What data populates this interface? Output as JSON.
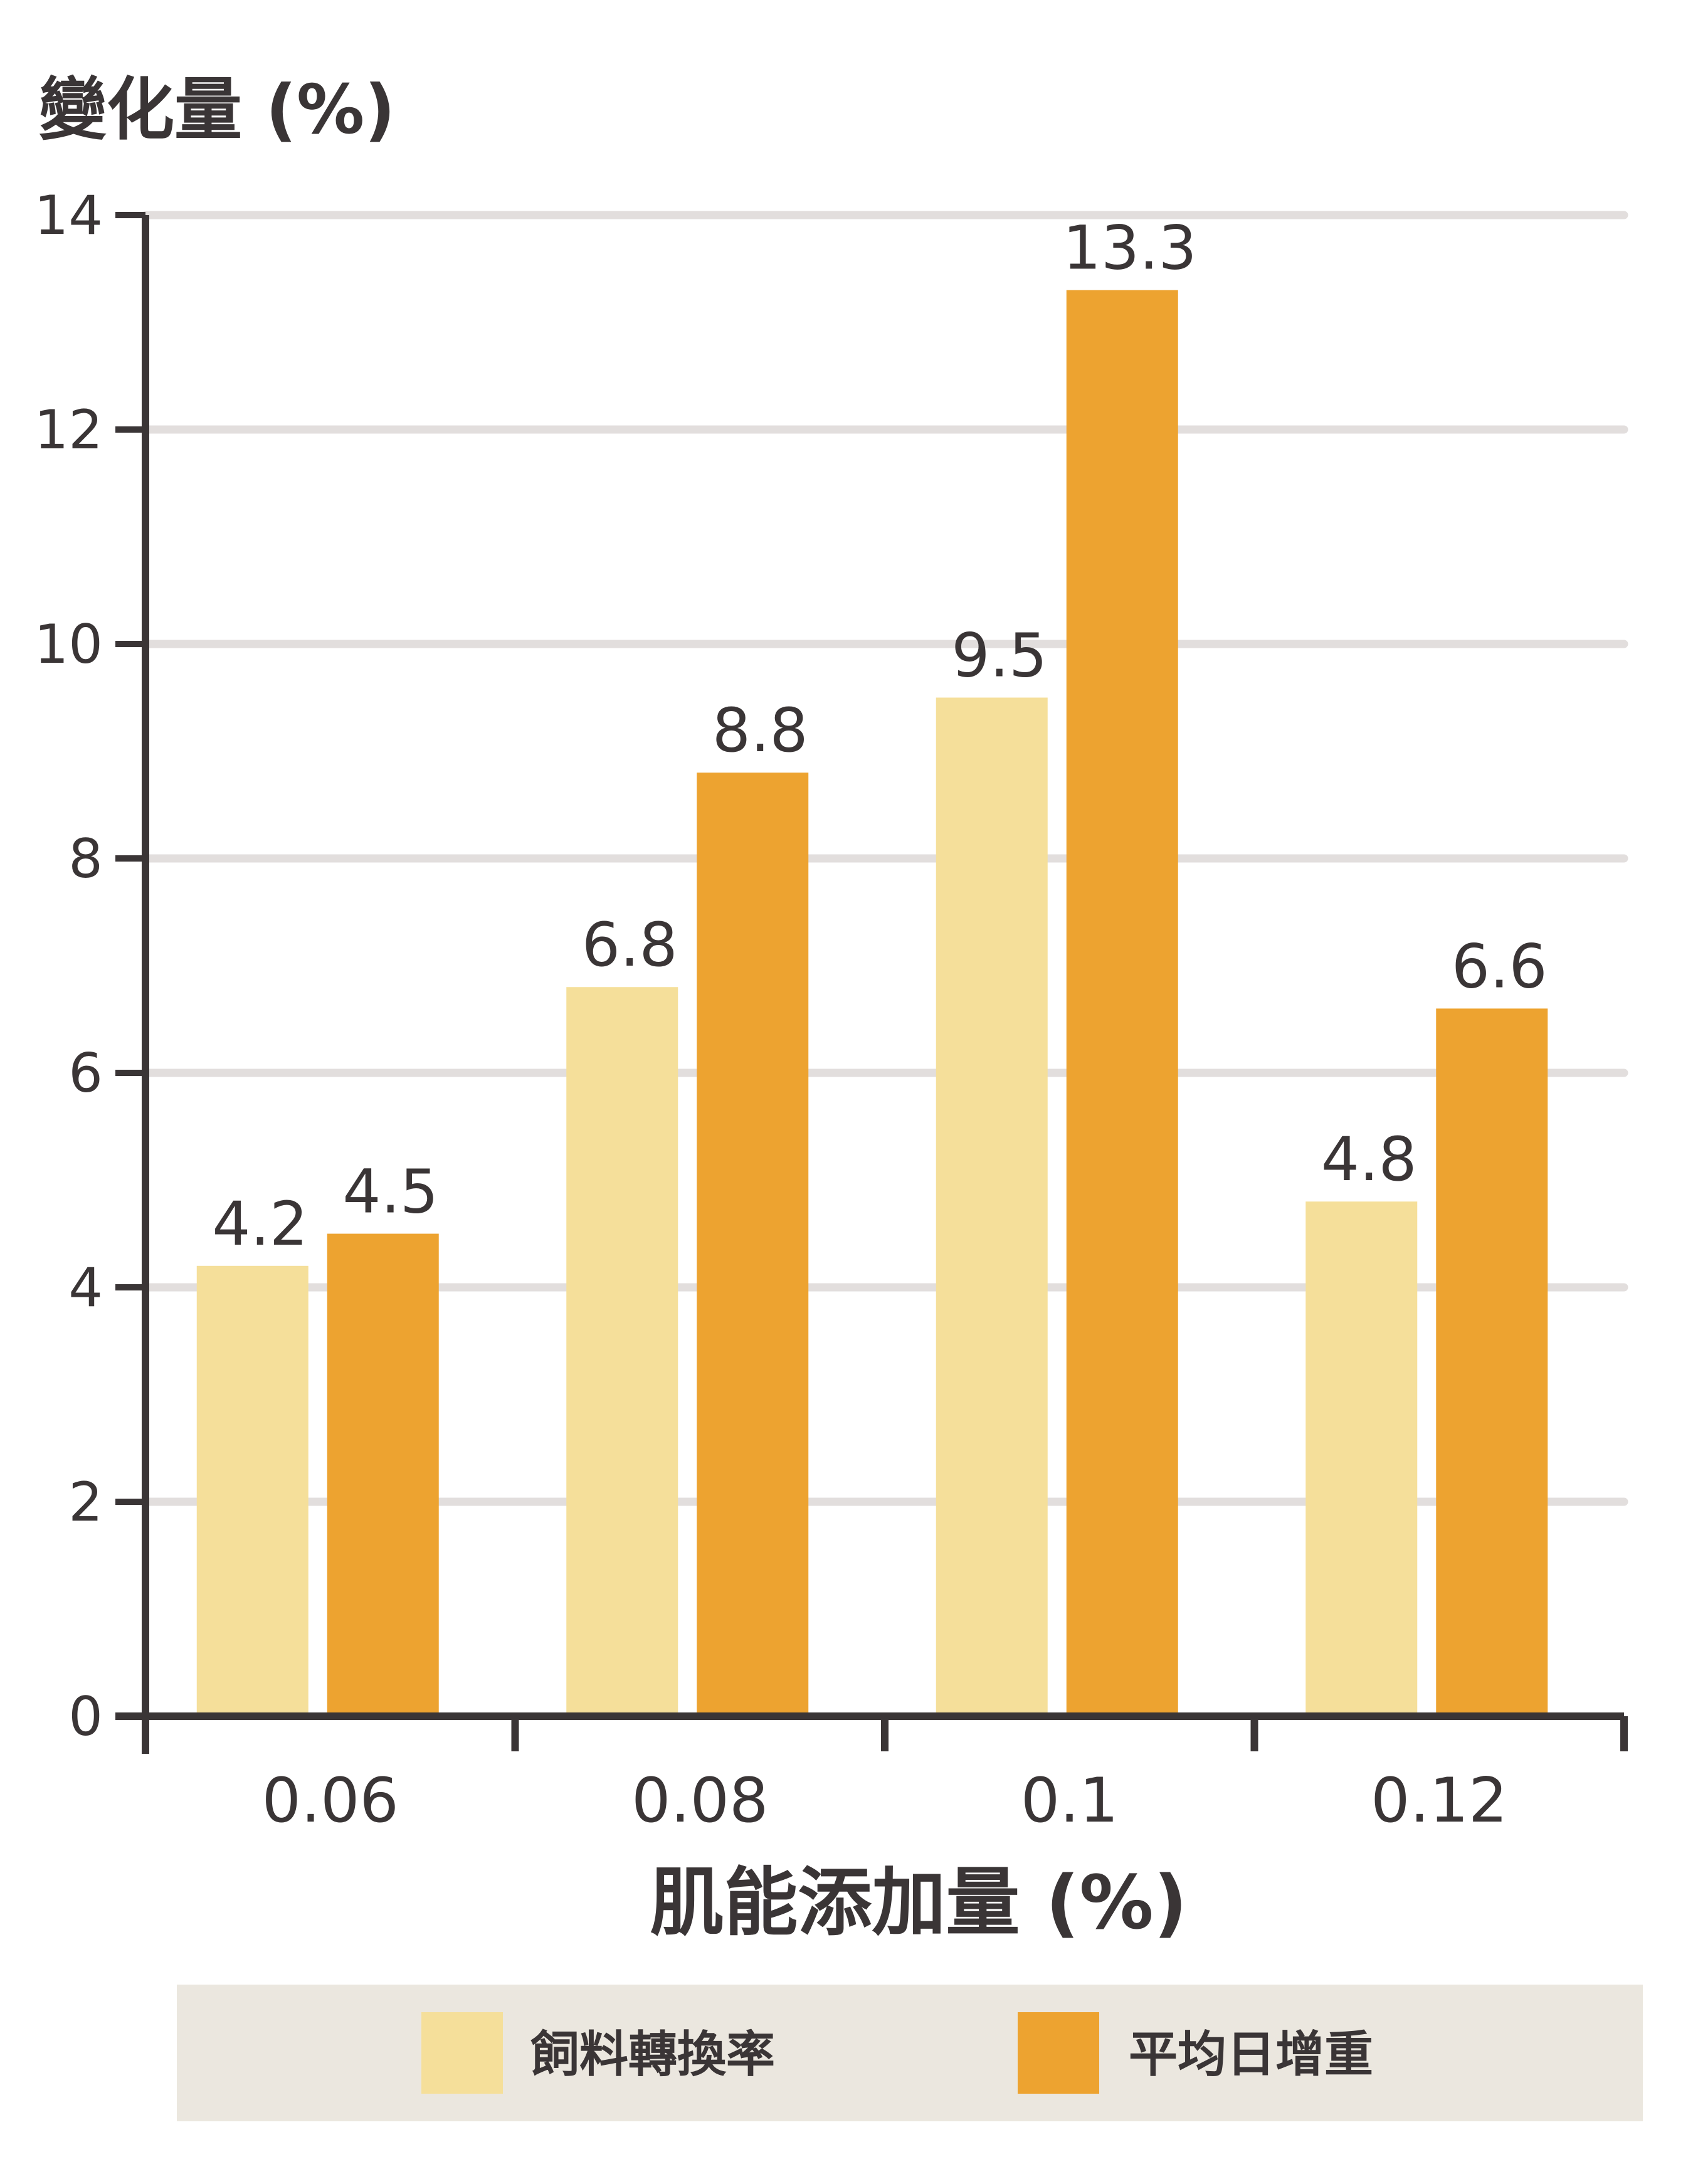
{
  "chart_data": {
    "type": "bar",
    "title": "",
    "ylabel": "變化量 (%)",
    "xlabel": "肌能添加量 (%)",
    "categories": [
      "0.06",
      "0.08",
      "0.1",
      "0.12"
    ],
    "series": [
      {
        "name": "飼料轉換率",
        "values": [
          4.2,
          6.8,
          9.5,
          4.8
        ],
        "color": "#f5df9a"
      },
      {
        "name": "平均日增重",
        "values": [
          4.5,
          8.8,
          13.3,
          6.6
        ],
        "color": "#eda330"
      }
    ],
    "ylim": [
      0,
      14
    ],
    "yticks": [
      0,
      2,
      4,
      6,
      8,
      10,
      12,
      14
    ],
    "grid": true,
    "legend_position": "bottom",
    "colors": {
      "axis": "#3a3536",
      "grid": "#e2dedd",
      "legend_bg": "#ebe7df",
      "text": "#3a3536"
    }
  }
}
